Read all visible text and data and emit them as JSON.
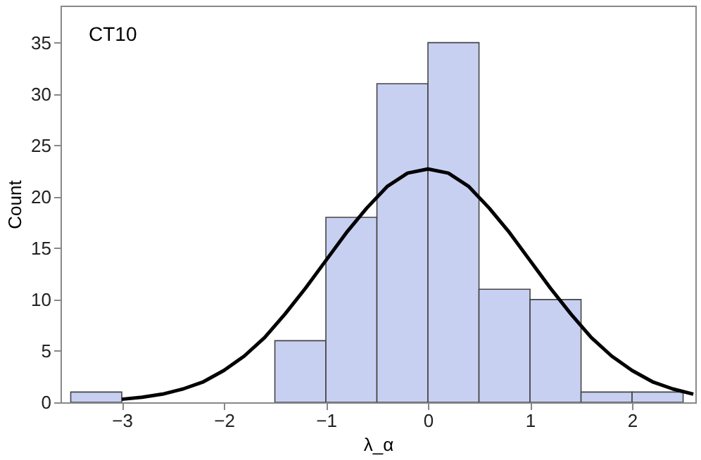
{
  "chart_data": {
    "type": "histogram",
    "xlabel": "λ_α",
    "ylabel": "Count",
    "annotations": [
      "CT10"
    ],
    "bins": [
      -3.5,
      -3.0,
      -2.5,
      -2.0,
      -1.5,
      -1.0,
      -0.5,
      0.0,
      0.5,
      1.0,
      1.5,
      2.0,
      2.5
    ],
    "values": [
      1,
      0,
      0,
      0,
      6,
      18,
      31,
      35,
      11,
      10,
      1,
      1
    ],
    "color": "#c8d0f2",
    "series": [
      {
        "type": "line",
        "color": "#000000",
        "x": [
          -3.0,
          -2.8,
          -2.6,
          -2.4,
          -2.2,
          -2.0,
          -1.8,
          -1.6,
          -1.4,
          -1.2,
          -1.0,
          -0.8,
          -0.6,
          -0.4,
          -0.2,
          0.0,
          0.2,
          0.4,
          0.6,
          0.8,
          1.0,
          1.2,
          1.4,
          1.6,
          1.8,
          2.0,
          2.2,
          2.4,
          2.6
        ],
        "values": [
          0.3,
          0.5,
          0.8,
          1.3,
          2.0,
          3.1,
          4.5,
          6.3,
          8.6,
          11.1,
          13.8,
          16.5,
          18.9,
          21.0,
          22.3,
          22.7,
          22.3,
          21.0,
          18.9,
          16.5,
          13.8,
          11.1,
          8.6,
          6.3,
          4.5,
          3.1,
          2.0,
          1.3,
          0.8
        ]
      }
    ],
    "xlim": [
      -3.6,
      2.62
    ],
    "ylim": [
      0,
      38.6
    ],
    "xticks": [
      -3,
      -2,
      -1,
      0,
      1,
      2
    ],
    "yticks": [
      0,
      5,
      10,
      15,
      20,
      25,
      30,
      35
    ],
    "grid": false,
    "line_style": "solid",
    "marker": "none"
  }
}
